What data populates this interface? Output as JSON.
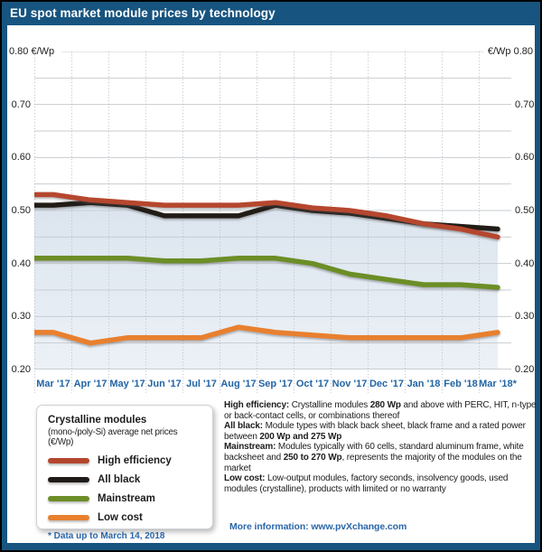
{
  "title_bar": {
    "title": "EU spot market module prices by technology"
  },
  "chart_data": {
    "type": "line",
    "title": "EU spot market module prices by technology",
    "unit": "€/Wp",
    "x": [
      "Mar '17",
      "Apr '17",
      "May '17",
      "Jun '17",
      "Jul '17",
      "Aug '17",
      "Sep '17",
      "Oct '17",
      "Nov '17",
      "Dec '17",
      "Jan '18",
      "Feb '18",
      "Mar '18*"
    ],
    "series": [
      {
        "name": "High efficiency",
        "color": "#b5462e",
        "values": [
          0.53,
          0.52,
          0.515,
          0.51,
          0.51,
          0.51,
          0.515,
          0.505,
          0.5,
          0.49,
          0.475,
          0.465,
          0.45
        ]
      },
      {
        "name": "All black",
        "color": "#201b19",
        "values": [
          0.51,
          0.515,
          0.51,
          0.49,
          0.49,
          0.49,
          0.51,
          0.5,
          0.495,
          0.485,
          0.475,
          0.47,
          0.465
        ]
      },
      {
        "name": "Mainstream",
        "color": "#6c8e27",
        "values": [
          0.41,
          0.41,
          0.41,
          0.405,
          0.405,
          0.41,
          0.41,
          0.4,
          0.38,
          0.37,
          0.36,
          0.36,
          0.355
        ]
      },
      {
        "name": "Low cost",
        "color": "#e8802d",
        "values": [
          0.27,
          0.25,
          0.26,
          0.26,
          0.26,
          0.28,
          0.27,
          0.265,
          0.26,
          0.26,
          0.26,
          0.26,
          0.27
        ]
      }
    ],
    "ylim": [
      0.2,
      0.8
    ],
    "y_tick_step": 0.1,
    "y_grid_step": 0.05,
    "y_ticks_left": [
      "0.80 €/Wp",
      "0.70",
      "0.60",
      "0.50",
      "0.40",
      "0.30",
      "0.20"
    ],
    "y_ticks_right": [
      "€/Wp 0.80",
      "0.70",
      "0.60",
      "0.50",
      "0.40",
      "0.30",
      "0.20"
    ],
    "grid": {
      "horizontal": "solid every 0.05",
      "vertical": "dotted at month boundaries"
    },
    "area_fill_under": "All black",
    "draw_order": [
      "All black",
      "High efficiency",
      "Mainstream",
      "Low cost"
    ],
    "legend_position": "bottom-left box"
  },
  "legend": {
    "title": "Crystalline modules",
    "subtitle": "(mono-/poly-Si) average net prices (€/Wp)",
    "items": [
      {
        "label": "High efficiency",
        "color": "#b5462e"
      },
      {
        "label": "All black",
        "color": "#201b19"
      },
      {
        "label": "Mainstream",
        "color": "#6c8e27"
      },
      {
        "label": "Low cost",
        "color": "#e8802d"
      }
    ],
    "note": "* Data up to March 14, 2018"
  },
  "definitions": [
    {
      "segments": [
        {
          "t": "High efficiency:",
          "b": true
        },
        {
          "t": " Crystalline modules ",
          "b": false
        },
        {
          "t": "280 Wp",
          "b": true
        },
        {
          "t": " and above with PERC, HIT, n-type or back-contact cells, or combinations thereof",
          "b": false
        }
      ]
    },
    {
      "segments": [
        {
          "t": "All black:",
          "b": true
        },
        {
          "t": " Module types with black back sheet, black frame and a rated power between ",
          "b": false
        },
        {
          "t": "200 Wp and 275 Wp",
          "b": true
        }
      ]
    },
    {
      "segments": [
        {
          "t": "Mainstream:",
          "b": true
        },
        {
          "t": " Modules typically with 60 cells, standard aluminum frame, white backsheet and ",
          "b": false
        },
        {
          "t": "250 to 270 Wp",
          "b": true
        },
        {
          "t": ", represents the majority of the modules on the market",
          "b": false
        }
      ]
    },
    {
      "segments": [
        {
          "t": "Low cost:",
          "b": true
        },
        {
          "t": " Low-output modules, factory seconds, insolvency goods, used modules (crystalline), products with limited or no warranty",
          "b": false
        }
      ]
    }
  ],
  "more_info": "More information: www.pvXchange.com",
  "colors": {
    "frame_navy": "#17547f",
    "outer_border": "#000000",
    "area_fill_top": "#dbe4ee",
    "area_fill_bottom": "#ecf1f6",
    "grid_line": "#c9cdd1",
    "grid_dots": "#b6bec7",
    "month_label_blue": "#2365a4",
    "info_blue": "#2a66a9"
  }
}
